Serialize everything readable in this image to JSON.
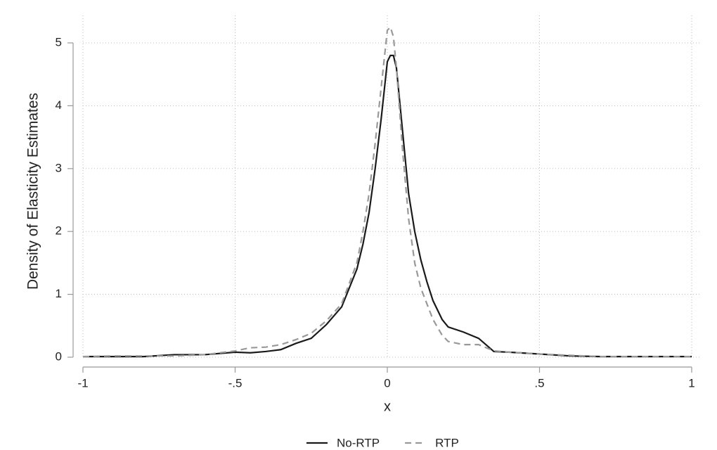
{
  "chart_data": {
    "type": "line",
    "xlabel": "x",
    "ylabel": "Density of Elasticity Estimates",
    "x": [
      -1,
      -0.9,
      -0.8,
      -0.7,
      -0.6,
      -0.5,
      -0.45,
      -0.4,
      -0.35,
      -0.3,
      -0.25,
      -0.2,
      -0.15,
      -0.1,
      -0.08,
      -0.06,
      -0.04,
      -0.02,
      0,
      0.01,
      0.02,
      0.03,
      0.05,
      0.07,
      0.09,
      0.11,
      0.13,
      0.15,
      0.18,
      0.2,
      0.25,
      0.3,
      0.35,
      0.4,
      0.5,
      0.6,
      0.7,
      0.8,
      0.9,
      1
    ],
    "series": [
      {
        "name": "No-RTP",
        "color": "#1a1a1a",
        "style": "solid",
        "values": [
          0.01,
          0.01,
          0.01,
          0.04,
          0.04,
          0.08,
          0.07,
          0.09,
          0.12,
          0.22,
          0.3,
          0.52,
          0.8,
          1.4,
          1.8,
          2.3,
          3.0,
          3.8,
          4.7,
          4.8,
          4.8,
          4.6,
          3.6,
          2.6,
          2.0,
          1.55,
          1.2,
          0.9,
          0.6,
          0.48,
          0.4,
          0.3,
          0.09,
          0.08,
          0.05,
          0.02,
          0.01,
          0.01,
          0.01,
          0.01
        ]
      },
      {
        "name": "RTP",
        "color": "#999999",
        "style": "dashed",
        "values": [
          0.01,
          0.02,
          0.02,
          0.02,
          0.04,
          0.1,
          0.15,
          0.16,
          0.2,
          0.28,
          0.38,
          0.58,
          0.85,
          1.5,
          2.0,
          2.6,
          3.4,
          4.3,
          5.2,
          5.25,
          5.1,
          4.6,
          3.3,
          2.2,
          1.5,
          1.1,
          0.85,
          0.6,
          0.35,
          0.25,
          0.2,
          0.2,
          0.1,
          0.08,
          0.05,
          0.03,
          0.01,
          0.01,
          0.01,
          0.01
        ]
      }
    ],
    "xlim": [
      -1,
      1
    ],
    "xticks": [
      -1,
      {
        "value": -0.5,
        "label": "-.5"
      },
      0,
      {
        "value": 0.5,
        "label": ".5"
      },
      1
    ],
    "ylim": [
      0,
      5
    ],
    "yticks": [
      0,
      1,
      2,
      3,
      4,
      5
    ],
    "grid": true,
    "legend": "bottom"
  }
}
